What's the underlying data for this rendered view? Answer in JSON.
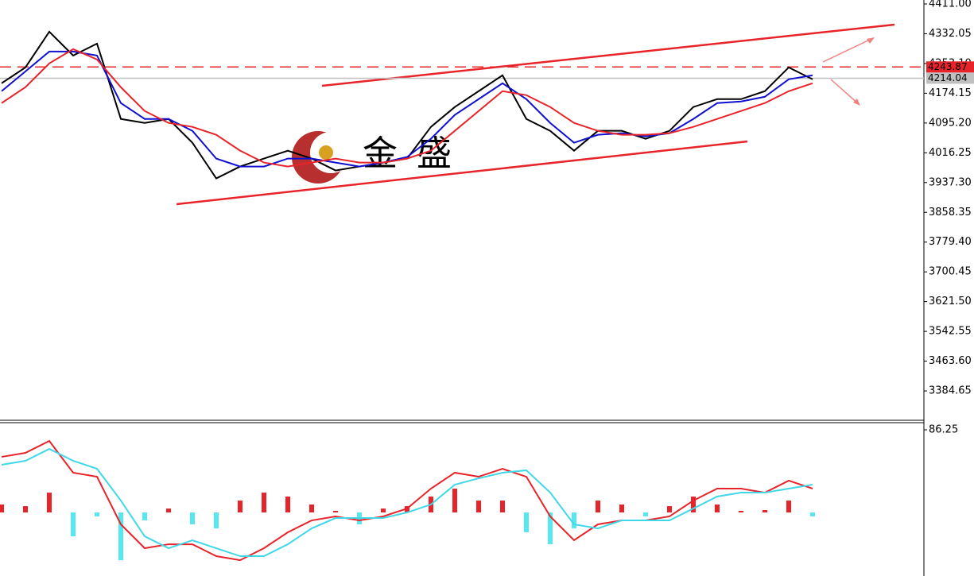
{
  "chart_data": [
    {
      "type": "line",
      "panel": "price",
      "ylim": [
        3306.8,
        4421.5
      ],
      "yticks": [
        {
          "value": 4411,
          "label": "4411.00"
        },
        {
          "value": 4332.05,
          "label": "4332.05"
        },
        {
          "value": 4253.1,
          "label": "4253.10"
        },
        {
          "value": 4174.15,
          "label": "4174.15"
        },
        {
          "value": 4095.2,
          "label": "4095.20"
        },
        {
          "value": 4016.25,
          "label": "4016.25"
        },
        {
          "value": 3937.3,
          "label": "3937.30"
        },
        {
          "value": 3858.35,
          "label": "3858.35"
        },
        {
          "value": 3779.4,
          "label": "3779.40"
        },
        {
          "value": 3700.45,
          "label": "3700.45"
        },
        {
          "value": 3621.5,
          "label": "3621.50"
        },
        {
          "value": 3542.55,
          "label": "3542.55"
        },
        {
          "value": 3463.6,
          "label": "3463.60"
        },
        {
          "value": 3384.65,
          "label": "3384.65"
        }
      ],
      "levels": [
        {
          "value": 4243.87,
          "label": "4243.87",
          "color": "#e8242a"
        },
        {
          "value": 4214.04,
          "label": "4214.04",
          "color": "#c0c0c0"
        }
      ],
      "series": [
        {
          "color": "#000000",
          "values": [
            4200.7,
            4242.7,
            4337.4,
            4274.3,
            4305.8,
            4106,
            4095.5,
            4106,
            4042.9,
            3948.3,
            3979.9,
            4000.9,
            4021.9,
            4000.9,
            3969.4,
            3979.9,
            3990.4,
            4000.9,
            4085,
            4137.6,
            4179.7,
            4221.7,
            4106,
            4074.5,
            4021.9,
            4074.5,
            4074.5,
            4053.5,
            4074.5,
            4137.6,
            4158.6,
            4158.6,
            4179.7,
            4242.7,
            4211.2
          ]
        },
        {
          "color": "#1010d0",
          "values": [
            4179.7,
            4232.2,
            4284.8,
            4284.8,
            4274.3,
            4148.1,
            4106,
            4106,
            4074.5,
            4000.9,
            3979.9,
            3979.9,
            4000.9,
            4000.9,
            3990.4,
            3979.9,
            3990.4,
            4005.1,
            4053.5,
            4116.6,
            4158.6,
            4200.7,
            4158.6,
            4095.5,
            4042.9,
            4064,
            4068.2,
            4059.8,
            4068.2,
            4106,
            4148.1,
            4152.3,
            4164.9,
            4211.2,
            4221.7
          ]
        },
        {
          "color": "#e8242a",
          "values": [
            4148.1,
            4190.2,
            4253.3,
            4291.1,
            4263.8,
            4190.2,
            4127.1,
            4095.5,
            4085,
            4064,
            4021.9,
            3990.4,
            3979.9,
            3990.4,
            4000.9,
            3990.4,
            3990.4,
            4000.9,
            4021.9,
            4074.5,
            4127.1,
            4179.7,
            4169.1,
            4137.6,
            4095.5,
            4074.5,
            4064,
            4064,
            4068.2,
            4085,
            4106,
            4127.1,
            4148.1,
            4179.7,
            4200.7
          ]
        }
      ],
      "watermark": [
        "金",
        "盛"
      ]
    },
    {
      "type": "macd",
      "panel": "indicator",
      "ylim": [
        -66.3,
        93.7
      ],
      "yticks": [
        86.25
      ],
      "histogram": {
        "up_color": "#e8242a",
        "down_color": "#55e8f0",
        "values": [
          8.3,
          6.6,
          20.7,
          -24.9,
          -4.1,
          -49.8,
          -8.3,
          4.1,
          -12.4,
          -16.6,
          12.4,
          20.7,
          16.6,
          8.3,
          1.7,
          -12.4,
          4.1,
          6.6,
          16.6,
          24.9,
          12.4,
          12.4,
          -20.7,
          -33.2,
          -16.6,
          12.4,
          8.3,
          -4.1,
          6.6,
          16.6,
          8.3,
          1.7,
          2.5,
          12.4,
          -4.1
        ]
      },
      "series": [
        {
          "color": "#e8242a",
          "values": [
            58,
            62.2,
            74.6,
            41.5,
            37.3,
            -12.4,
            -37.3,
            -33.2,
            -33.2,
            -45.6,
            -49.8,
            -37.3,
            -20.7,
            -8.3,
            -4.1,
            -8.3,
            -4.1,
            4.1,
            24.9,
            41.5,
            37.3,
            45.6,
            37.3,
            -4.1,
            -29,
            -12.4,
            -8.3,
            -8.3,
            -4.1,
            12.4,
            24.9,
            24.9,
            20.7,
            33.2,
            24.9
          ]
        },
        {
          "color": "#40d8e8",
          "values": [
            49.8,
            53.9,
            66.3,
            53.9,
            45.6,
            12.4,
            -24.9,
            -37.3,
            -29,
            -37.3,
            -45.6,
            -45.6,
            -33.2,
            -16.6,
            -5.8,
            -5.8,
            -5.8,
            0,
            8.3,
            29,
            35.6,
            41.5,
            44,
            20.7,
            -12.4,
            -16.6,
            -8.3,
            -8.3,
            -8.3,
            4.1,
            16.6,
            20.7,
            20.7,
            24.9,
            29
          ]
        }
      ]
    }
  ]
}
